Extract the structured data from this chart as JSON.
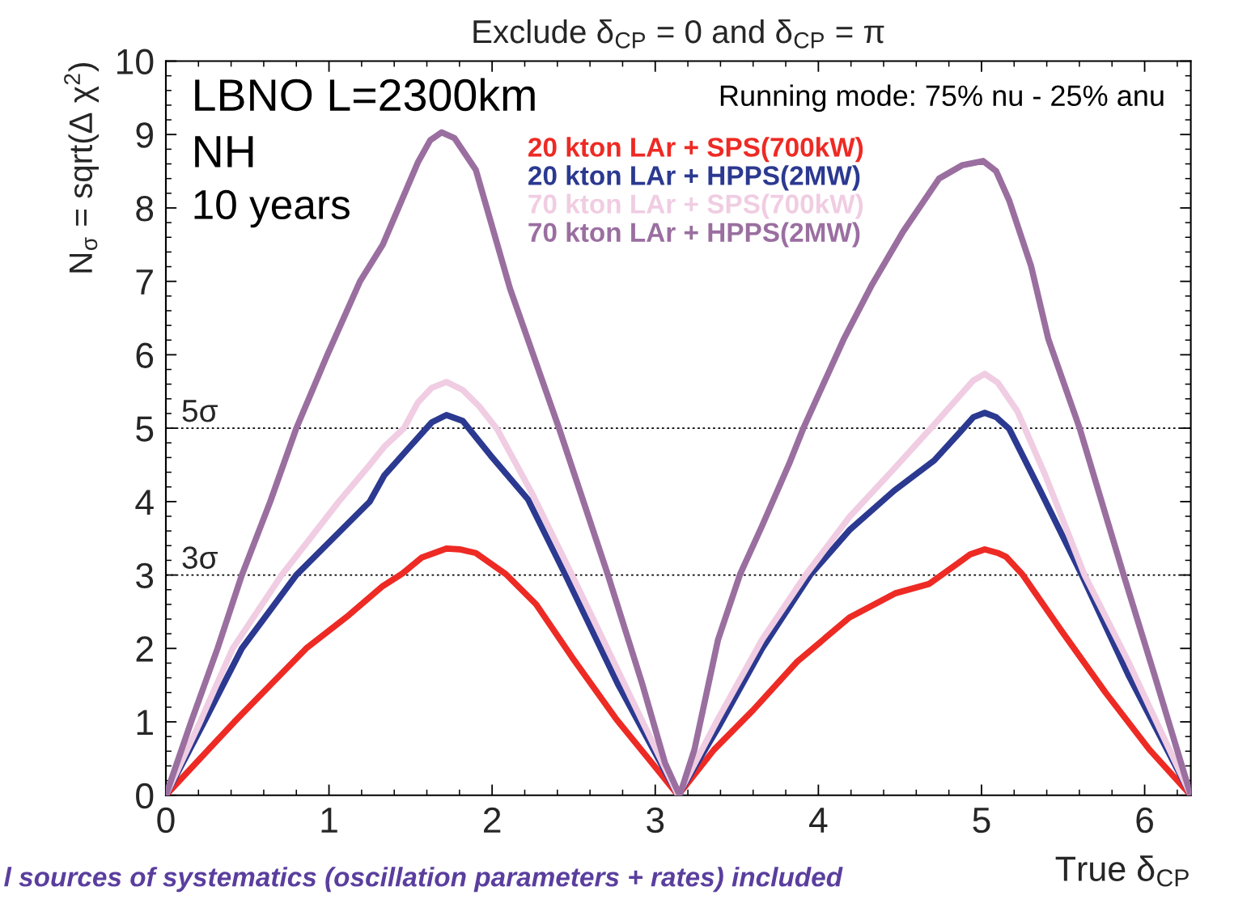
{
  "chart_data": {
    "type": "line",
    "title": "Exclude δ$_{CP}$ = 0 and δ$_{CP}$ = π",
    "xlabel": "True δ$_{CP}$",
    "ylabel": "N$_{σ}$ = sqrt(Δ χ$^{2}$)",
    "xlim": [
      0,
      6.283
    ],
    "ylim": [
      0,
      10
    ],
    "xticks": [
      0,
      1,
      2,
      3,
      4,
      5,
      6
    ],
    "yticks": [
      0,
      1,
      2,
      3,
      4,
      5,
      6,
      7,
      8,
      9,
      10
    ],
    "legend": "top",
    "series": [
      {
        "name": "20 kton LAr + SPS(700kW)",
        "color": "#ee2a24",
        "x": [
          0,
          0.21,
          0.42,
          0.64,
          0.86,
          1.12,
          1.33,
          1.45,
          1.57,
          1.72,
          1.8,
          1.9,
          2.085,
          2.27,
          2.49,
          2.76,
          2.98,
          3.14,
          3.36,
          3.6,
          3.87,
          4.19,
          4.47,
          4.68,
          4.85,
          4.93,
          5.02,
          5.1,
          5.15,
          5.25,
          5.49,
          5.76,
          6.03,
          6.283
        ],
        "values": [
          0,
          0.5,
          1.0,
          1.5,
          2.0,
          2.45,
          2.85,
          3.02,
          3.24,
          3.36,
          3.35,
          3.3,
          3.01,
          2.6,
          1.88,
          1.04,
          0.44,
          0,
          0.62,
          1.16,
          1.82,
          2.42,
          2.75,
          2.88,
          3.15,
          3.28,
          3.35,
          3.3,
          3.25,
          3.01,
          2.24,
          1.4,
          0.62,
          0
        ]
      },
      {
        "name": "20 kton LAr + HPPS(2MW)",
        "color": "#2b3990",
        "x": [
          0,
          0.235,
          0.466,
          0.8,
          1.25,
          1.34,
          1.545,
          1.63,
          1.72,
          1.82,
          1.99,
          2.22,
          2.45,
          2.77,
          3.14,
          3.385,
          3.655,
          3.95,
          4.19,
          4.465,
          4.71,
          4.87,
          4.95,
          5.02,
          5.09,
          5.17,
          5.36,
          5.615,
          5.9,
          6.283
        ],
        "values": [
          0,
          1.0,
          2.0,
          3.0,
          4.0,
          4.36,
          4.87,
          5.08,
          5.18,
          5.1,
          4.63,
          4.03,
          3.0,
          1.52,
          0,
          0.92,
          2.0,
          3.0,
          3.61,
          4.15,
          4.56,
          4.95,
          5.15,
          5.21,
          5.15,
          4.99,
          4.15,
          3.0,
          1.64,
          0
        ]
      },
      {
        "name": "70 kton LAr + SPS(700kW)",
        "color": "#f0cde2",
        "x": [
          0,
          0.21,
          0.41,
          0.71,
          1.06,
          1.25,
          1.34,
          1.46,
          1.545,
          1.63,
          1.72,
          1.82,
          1.92,
          2.03,
          2.25,
          2.49,
          2.81,
          3.14,
          3.385,
          3.655,
          3.925,
          4.19,
          4.465,
          4.71,
          4.87,
          4.95,
          5.02,
          5.1,
          5.22,
          5.385,
          5.63,
          5.9,
          6.283
        ],
        "values": [
          0,
          1.0,
          2.0,
          3.0,
          4.0,
          4.5,
          4.75,
          5.0,
          5.35,
          5.55,
          5.63,
          5.52,
          5.3,
          4.99,
          4.09,
          3.0,
          1.52,
          0,
          1.04,
          2.12,
          3.01,
          3.79,
          4.45,
          5.05,
          5.45,
          5.65,
          5.74,
          5.62,
          5.23,
          4.39,
          3.01,
          1.82,
          0
        ]
      },
      {
        "name": "70 kton LAr + HPPS(2MW)",
        "color": "#9a6fa0",
        "x": [
          0,
          0.155,
          0.317,
          0.466,
          0.64,
          0.8,
          0.99,
          1.19,
          1.33,
          1.545,
          1.62,
          1.69,
          1.77,
          1.9,
          2.11,
          2.41,
          2.71,
          2.92,
          3.06,
          3.15,
          3.24,
          3.385,
          3.52,
          3.655,
          3.82,
          3.91,
          4.155,
          4.33,
          4.52,
          4.74,
          4.88,
          5.01,
          5.09,
          5.17,
          5.305,
          5.41,
          5.6,
          5.87,
          6.06,
          6.283
        ],
        "values": [
          0,
          1.0,
          2.0,
          3.0,
          4.0,
          5.0,
          6.0,
          7.0,
          7.5,
          8.62,
          8.92,
          9.03,
          8.95,
          8.52,
          6.9,
          5.0,
          3.0,
          1.52,
          0.44,
          0,
          0.62,
          2.12,
          3.01,
          3.67,
          4.51,
          5.01,
          6.21,
          6.96,
          7.68,
          8.4,
          8.58,
          8.64,
          8.5,
          8.1,
          7.2,
          6.21,
          5.01,
          3.01,
          1.64,
          0
        ]
      }
    ],
    "ref_lines": [
      {
        "axis": "y",
        "value": 5,
        "label": "5σ",
        "line_style": "dotted",
        "color": "#000000"
      },
      {
        "axis": "y",
        "value": 3,
        "label": "3σ",
        "line_style": "dotted",
        "color": "#000000"
      }
    ],
    "annotations": [
      "LBNO L=2300km",
      "NH",
      "10 years",
      "Running mode: 75% nu - 25% anu",
      "l sources of systematics (oscillation parameters + rates) included"
    ]
  }
}
